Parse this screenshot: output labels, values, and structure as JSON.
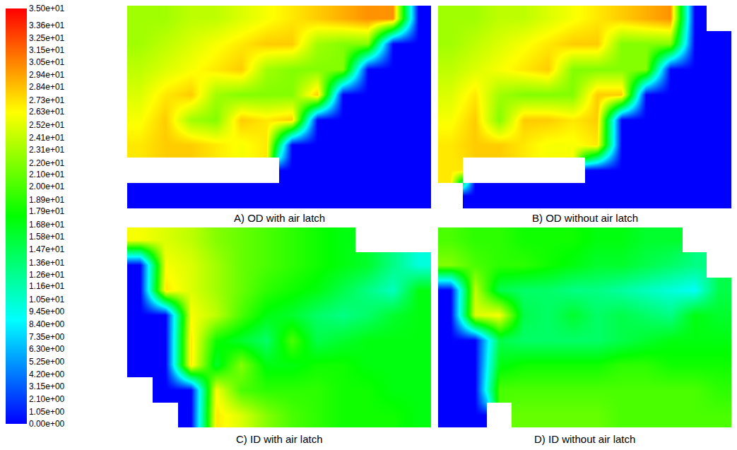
{
  "chart_data": {
    "type": "heatmap",
    "tick_labels": false,
    "colorbar": {
      "range": [
        0,
        35
      ],
      "ticks": [
        {
          "value": 0,
          "label": "0.00e+00"
        },
        {
          "value": 1.05,
          "label": "1.05e+00"
        },
        {
          "value": 2.1,
          "label": "2.10e+00"
        },
        {
          "value": 3.15,
          "label": "3.15e+00"
        },
        {
          "value": 4.2,
          "label": "4.20e+00"
        },
        {
          "value": 5.25,
          "label": "5.25e+00"
        },
        {
          "value": 6.3,
          "label": "6.30e+00"
        },
        {
          "value": 7.35,
          "label": "7.35e+00"
        },
        {
          "value": 8.4,
          "label": "8.40e+00"
        },
        {
          "value": 9.45,
          "label": "9.45e+00"
        },
        {
          "value": 10.5,
          "label": "1.05e+01"
        },
        {
          "value": 11.6,
          "label": "1.16e+01"
        },
        {
          "value": 12.6,
          "label": "1.26e+01"
        },
        {
          "value": 13.6,
          "label": "1.36e+01"
        },
        {
          "value": 14.7,
          "label": "1.47e+01"
        },
        {
          "value": 15.8,
          "label": "1.58e+01"
        },
        {
          "value": 16.8,
          "label": "1.68e+01"
        },
        {
          "value": 17.9,
          "label": "1.79e+01"
        },
        {
          "value": 18.9,
          "label": "1.89e+01"
        },
        {
          "value": 20.0,
          "label": "2.00e+01"
        },
        {
          "value": 21.0,
          "label": "2.10e+01"
        },
        {
          "value": 22.0,
          "label": "2.20e+01"
        },
        {
          "value": 23.1,
          "label": "2.31e+01"
        },
        {
          "value": 24.1,
          "label": "2.41e+01"
        },
        {
          "value": 25.2,
          "label": "2.52e+01"
        },
        {
          "value": 26.3,
          "label": "2.63e+01"
        },
        {
          "value": 27.3,
          "label": "2.73e+01"
        },
        {
          "value": 28.4,
          "label": "2.84e+01"
        },
        {
          "value": 29.4,
          "label": "2.94e+01"
        },
        {
          "value": 30.5,
          "label": "3.05e+01"
        },
        {
          "value": 31.5,
          "label": "3.15e+01"
        },
        {
          "value": 32.5,
          "label": "3.25e+01"
        },
        {
          "value": 33.6,
          "label": "3.36e+01"
        },
        {
          "value": 35.0,
          "label": "3.50e+01"
        }
      ]
    },
    "panels": [
      {
        "title": "A) OD with air latch",
        "z": [
          [
            23,
            23,
            24,
            24,
            25,
            26,
            27,
            28,
            29,
            30,
            30,
            0
          ],
          [
            23,
            24,
            25,
            26,
            27,
            28,
            28,
            23,
            22,
            22,
            0,
            0
          ],
          [
            24,
            25,
            26,
            27,
            28,
            23,
            22,
            22,
            22,
            0,
            0,
            0
          ],
          [
            25,
            27,
            28,
            23,
            22,
            22,
            22,
            28,
            0,
            0,
            0,
            0
          ],
          [
            26,
            28,
            23,
            22,
            28,
            27,
            28,
            0,
            0,
            0,
            0,
            0
          ],
          [
            27,
            28,
            28,
            27,
            26,
            27,
            0,
            0,
            0,
            0,
            0,
            0
          ],
          [
            null,
            null,
            null,
            null,
            null,
            null,
            0,
            0,
            0,
            0,
            0,
            0
          ],
          [
            0,
            0,
            0,
            0,
            0,
            0,
            0,
            0,
            0,
            0,
            0,
            0
          ]
        ]
      },
      {
        "title": "B) OD without air latch",
        "z": [
          [
            23,
            23,
            24,
            24,
            25,
            26,
            27,
            28,
            29,
            30,
            0,
            null
          ],
          [
            23,
            24,
            25,
            26,
            27,
            28,
            28,
            22,
            22,
            22,
            0,
            0
          ],
          [
            24,
            25,
            26,
            27,
            28,
            22,
            22,
            22,
            22,
            0,
            0,
            0
          ],
          [
            25,
            27,
            23,
            22,
            22,
            22,
            28,
            28,
            0,
            0,
            0,
            0
          ],
          [
            26,
            28,
            22,
            28,
            28,
            27,
            28,
            0,
            0,
            0,
            0,
            0
          ],
          [
            27,
            28,
            28,
            27,
            26,
            26,
            27,
            0,
            0,
            0,
            0,
            0
          ],
          [
            27,
            null,
            null,
            null,
            null,
            null,
            0,
            0,
            0,
            0,
            0,
            0
          ],
          [
            null,
            0,
            0,
            0,
            0,
            0,
            0,
            0,
            0,
            0,
            0,
            0
          ]
        ]
      },
      {
        "title": "C) ID with air latch",
        "z": [
          [
            26,
            25,
            24,
            22,
            21,
            20,
            19,
            18,
            17,
            null,
            null,
            null
          ],
          [
            0,
            26,
            25,
            23,
            21,
            20,
            19,
            18,
            17,
            16,
            13,
            10
          ],
          [
            0,
            27,
            25,
            23,
            21,
            19,
            18,
            17,
            15,
            13,
            11,
            17
          ],
          [
            0,
            0,
            26,
            24,
            20,
            17,
            16,
            14,
            13,
            14,
            16,
            17
          ],
          [
            0,
            0,
            27,
            18,
            16,
            14,
            20,
            15,
            16,
            17,
            17,
            17
          ],
          [
            0,
            0,
            27,
            16,
            22,
            17,
            17,
            18,
            18,
            17,
            17,
            17
          ],
          [
            null,
            0,
            0,
            26,
            20,
            19,
            19,
            19,
            18,
            18,
            17,
            17
          ],
          [
            null,
            null,
            0,
            27,
            25,
            22,
            20,
            19,
            18,
            18,
            18,
            17
          ]
        ]
      },
      {
        "title": "D) ID without air latch",
        "z": [
          [
            20,
            19,
            19,
            18,
            18,
            18,
            17,
            17,
            16,
            16,
            null,
            null
          ],
          [
            22,
            20,
            19,
            19,
            18,
            17,
            16,
            16,
            15,
            14,
            13,
            null
          ],
          [
            0,
            24,
            15,
            14,
            14,
            13,
            13,
            12,
            11,
            10,
            9,
            15
          ],
          [
            0,
            25,
            26,
            15,
            14,
            16,
            14,
            15,
            14,
            13,
            17,
            16
          ],
          [
            0,
            0,
            15,
            14,
            14,
            14,
            14,
            15,
            16,
            17,
            17,
            17
          ],
          [
            0,
            0,
            17,
            18,
            18,
            18,
            18,
            19,
            19,
            18,
            18,
            18
          ],
          [
            0,
            0,
            20,
            20,
            20,
            20,
            20,
            20,
            20,
            20,
            20,
            19
          ],
          [
            0,
            0,
            null,
            21,
            21,
            21,
            21,
            20,
            20,
            20,
            20,
            20
          ]
        ]
      }
    ]
  }
}
